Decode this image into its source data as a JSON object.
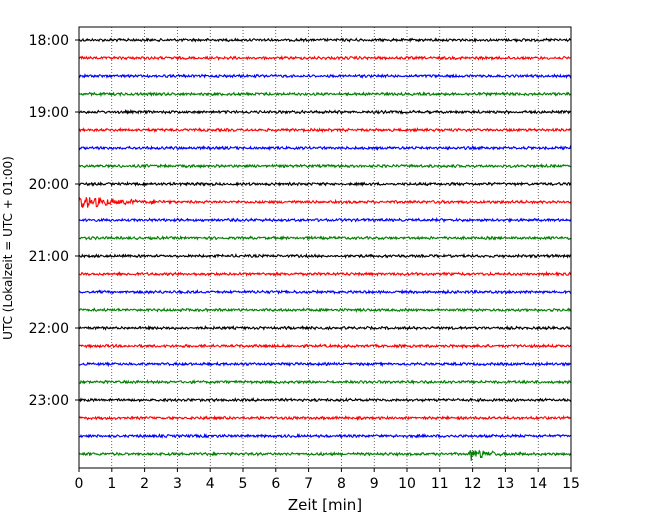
{
  "chart_data": {
    "type": "line",
    "title": "",
    "xlabel": "Zeit  [min]",
    "ylabel": "UTC (Lokalzeit = UTC + 01:00)",
    "xlim": [
      0,
      15
    ],
    "x_ticks": [
      "0",
      "1",
      "2",
      "3",
      "4",
      "5",
      "6",
      "7",
      "8",
      "9",
      "10",
      "11",
      "12",
      "13",
      "14",
      "15"
    ],
    "y_ticks": [
      "18:00",
      "19:00",
      "20:00",
      "21:00",
      "22:00",
      "23:00"
    ],
    "trace_start": "18:00",
    "trace_end": "23:45",
    "trace_interval_min": 15,
    "grid": "vertical-dotted",
    "trace_colors": [
      "#000000",
      "#ff0000",
      "#0000ff",
      "#008000"
    ],
    "events": [
      {
        "trace_time": "20:15",
        "x_start": 0.0,
        "x_end": 3.0,
        "amplitude": "moderate"
      },
      {
        "trace_time": "23:45",
        "x_start": 11.9,
        "x_end": 13.5,
        "amplitude": "moderate"
      }
    ]
  }
}
